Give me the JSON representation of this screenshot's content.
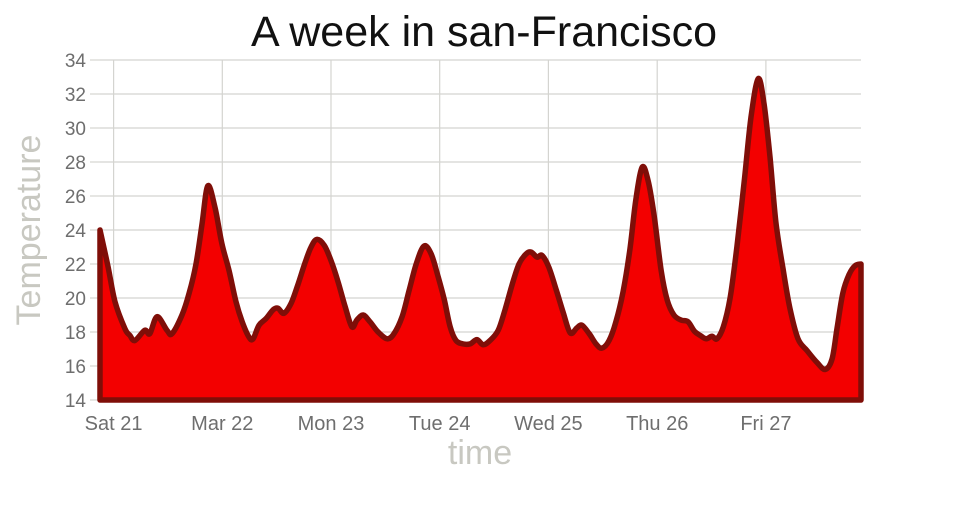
{
  "chart_data": {
    "type": "area",
    "title": "A week in san-Francisco",
    "xlabel": "time",
    "ylabel": "Temperature",
    "ylim": [
      14,
      34
    ],
    "y_ticks": [
      14,
      16,
      18,
      20,
      22,
      24,
      26,
      28,
      30,
      32,
      34
    ],
    "x_range_hours": [
      0,
      168
    ],
    "x_ticks": [
      {
        "hour": 3,
        "label": "Sat 21"
      },
      {
        "hour": 27,
        "label": "Mar 22"
      },
      {
        "hour": 51,
        "label": "Mon 23"
      },
      {
        "hour": 75,
        "label": "Tue 24"
      },
      {
        "hour": 99,
        "label": "Wed 25"
      },
      {
        "hour": 123,
        "label": "Thu 26"
      },
      {
        "hour": 147,
        "label": "Fri 27"
      }
    ],
    "grid": true,
    "legend": false,
    "series": [
      {
        "name": "temperature",
        "smoothing": "spline",
        "points_hour_temp": [
          [
            0,
            24
          ],
          [
            1.8,
            21.8
          ],
          [
            3.3,
            19.8
          ],
          [
            5.5,
            18.2
          ],
          [
            6.6,
            17.8
          ],
          [
            7.7,
            17.5
          ],
          [
            9.9,
            18.1
          ],
          [
            11,
            17.9
          ],
          [
            12.6,
            18.9
          ],
          [
            14.8,
            18.1
          ],
          [
            15.9,
            17.9
          ],
          [
            18.1,
            19
          ],
          [
            19.7,
            20.3
          ],
          [
            21.2,
            22
          ],
          [
            22.5,
            24.3
          ],
          [
            23.8,
            26.6
          ],
          [
            25.4,
            25.3
          ],
          [
            26.9,
            23.2
          ],
          [
            28.5,
            21.6
          ],
          [
            30,
            19.8
          ],
          [
            31.4,
            18.6
          ],
          [
            32.9,
            17.7
          ],
          [
            33.8,
            17.6
          ],
          [
            35.1,
            18.4
          ],
          [
            36.7,
            18.8
          ],
          [
            38.2,
            19.3
          ],
          [
            39.3,
            19.4
          ],
          [
            40.6,
            19.1
          ],
          [
            42.2,
            19.7
          ],
          [
            43.7,
            20.8
          ],
          [
            45.3,
            22.1
          ],
          [
            46.6,
            23
          ],
          [
            47.9,
            23.45
          ],
          [
            49.5,
            23.1
          ],
          [
            51,
            22.2
          ],
          [
            52.5,
            21
          ],
          [
            54.1,
            19.5
          ],
          [
            55.6,
            18.3
          ],
          [
            56.7,
            18.7
          ],
          [
            58.1,
            19
          ],
          [
            59.6,
            18.6
          ],
          [
            61.4,
            18
          ],
          [
            63.4,
            17.6
          ],
          [
            64.9,
            17.9
          ],
          [
            66.7,
            18.9
          ],
          [
            68.2,
            20.4
          ],
          [
            69.8,
            22
          ],
          [
            71.5,
            23.05
          ],
          [
            73.1,
            22.6
          ],
          [
            74.6,
            21.3
          ],
          [
            76,
            19.9
          ],
          [
            77.3,
            18.3
          ],
          [
            78.6,
            17.5
          ],
          [
            80.1,
            17.3
          ],
          [
            81.7,
            17.3
          ],
          [
            83.2,
            17.55
          ],
          [
            84.6,
            17.25
          ],
          [
            86.1,
            17.5
          ],
          [
            87.9,
            18.1
          ],
          [
            89.4,
            19.3
          ],
          [
            91,
            20.8
          ],
          [
            92.5,
            22
          ],
          [
            94.1,
            22.6
          ],
          [
            95.2,
            22.7
          ],
          [
            96.5,
            22.4
          ],
          [
            97.6,
            22.5
          ],
          [
            99.1,
            21.8
          ],
          [
            100.7,
            20.5
          ],
          [
            102.2,
            19.2
          ],
          [
            103.8,
            17.95
          ],
          [
            105.3,
            18.25
          ],
          [
            106.4,
            18.4
          ],
          [
            108,
            17.9
          ],
          [
            109.5,
            17.3
          ],
          [
            110.8,
            17.05
          ],
          [
            112.4,
            17.5
          ],
          [
            113.9,
            18.6
          ],
          [
            115.5,
            20.4
          ],
          [
            117,
            22.9
          ],
          [
            118.3,
            25.8
          ],
          [
            119.7,
            27.7
          ],
          [
            121,
            26.9
          ],
          [
            122.3,
            24.9
          ],
          [
            123.9,
            21.6
          ],
          [
            125.2,
            19.9
          ],
          [
            126.7,
            19
          ],
          [
            128.3,
            18.7
          ],
          [
            129.8,
            18.6
          ],
          [
            131.2,
            18.05
          ],
          [
            132.5,
            17.8
          ],
          [
            133.8,
            17.6
          ],
          [
            135.1,
            17.75
          ],
          [
            136.2,
            17.6
          ],
          [
            137.6,
            18.3
          ],
          [
            139.1,
            20
          ],
          [
            140.6,
            23
          ],
          [
            142.2,
            26.8
          ],
          [
            143.7,
            30.6
          ],
          [
            145.3,
            32.9
          ],
          [
            146.6,
            31.4
          ],
          [
            147.9,
            28.3
          ],
          [
            149.2,
            24.5
          ],
          [
            150.8,
            21.7
          ],
          [
            152.3,
            19.4
          ],
          [
            154.1,
            17.6
          ],
          [
            156.1,
            16.9
          ],
          [
            158.3,
            16.2
          ],
          [
            160.1,
            15.8
          ],
          [
            161.6,
            16.4
          ],
          [
            162.7,
            18.2
          ],
          [
            164,
            20.3
          ],
          [
            165.4,
            21.4
          ],
          [
            166.7,
            21.9
          ],
          [
            168,
            22
          ]
        ]
      }
    ]
  },
  "style": {
    "area_fill": "#f30000",
    "area_stroke": "#7f0e08",
    "grid_color": "#d4d4d0",
    "tick_label_color": "#6e6e6e",
    "axis_title_color": "#c8c8c1",
    "title_color": "#111111",
    "background": "#ffffff"
  }
}
